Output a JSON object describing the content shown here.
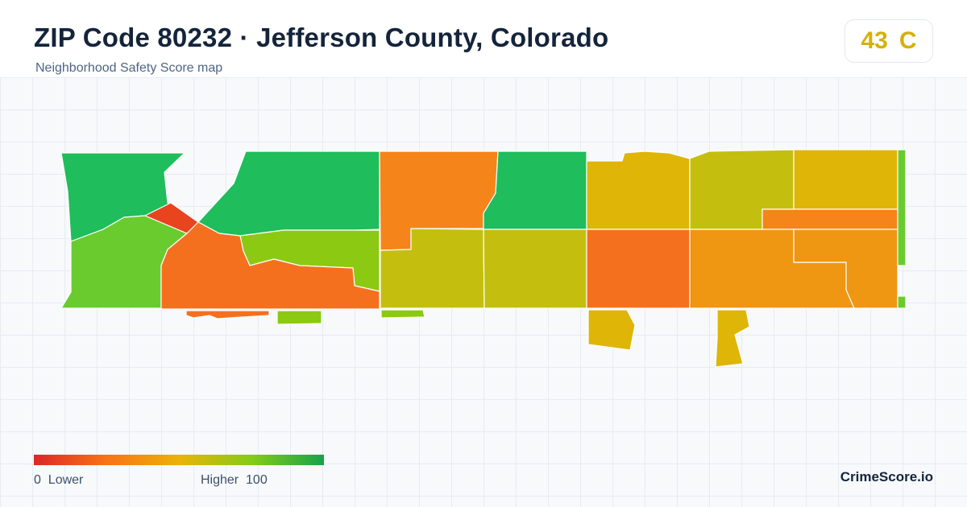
{
  "header": {
    "title": "ZIP Code 80232 · Jefferson County, Colorado",
    "subtitle": "Neighborhood Safety Score map"
  },
  "score": {
    "value": "43",
    "grade": "C",
    "color": "#d4b106"
  },
  "legend": {
    "min_value": "0",
    "min_label": "Lower",
    "max_label": "Higher",
    "max_value": "100",
    "gradient_colors": [
      "#dc2626",
      "#f97316",
      "#eab308",
      "#84cc16",
      "#16a34a"
    ]
  },
  "brand": {
    "name": "CrimeScore.io"
  },
  "map_colors": {
    "dark_green": "#1fbd5c",
    "green": "#6acb2e",
    "yellow_green": "#8cc913",
    "olive": "#c4bf0e",
    "gold": "#dfb507",
    "orange": "#f5841a",
    "deep_orange": "#f5701e",
    "amber": "#ef9612",
    "red": "#e8441e"
  }
}
